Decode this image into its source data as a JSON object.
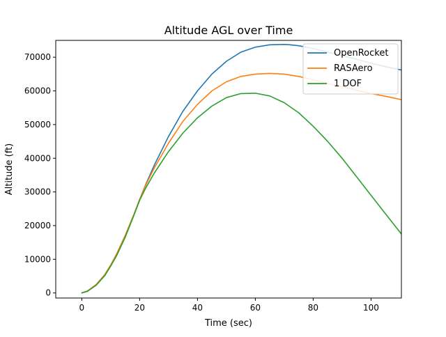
{
  "chart_data": {
    "type": "line",
    "title": "Altitude AGL over Time",
    "xlabel": "Time (sec)",
    "ylabel": "Altitude (ft)",
    "xlim": [
      -9,
      110.5
    ],
    "ylim": [
      -1500,
      75000
    ],
    "xticks": [
      0,
      20,
      40,
      60,
      80,
      100
    ],
    "yticks": [
      0,
      10000,
      20000,
      30000,
      40000,
      50000,
      60000,
      70000
    ],
    "legend_position": "top-right",
    "grid": false,
    "series": [
      {
        "name": "OpenRocket",
        "color": "#1f77b4",
        "x": [
          0,
          2,
          5,
          8,
          10,
          12,
          15,
          18,
          20,
          22,
          25,
          30,
          35,
          40,
          45,
          50,
          55,
          60,
          65,
          70,
          72,
          75,
          80,
          85,
          90,
          95,
          100,
          105,
          110.5
        ],
        "y": [
          0,
          600,
          2500,
          5500,
          8300,
          11500,
          17000,
          23300,
          27800,
          32000,
          37800,
          46500,
          54000,
          60000,
          65000,
          68800,
          71500,
          73000,
          73700,
          73800,
          73700,
          73400,
          72600,
          71500,
          70500,
          69400,
          68200,
          67200,
          66200
        ]
      },
      {
        "name": "RASAero",
        "color": "#ff7f0e",
        "x": [
          0,
          2,
          5,
          8,
          10,
          12,
          15,
          18,
          20,
          22,
          25,
          30,
          35,
          40,
          45,
          50,
          55,
          60,
          65,
          70,
          75,
          80,
          85,
          90,
          95,
          100,
          105,
          110.5
        ],
        "y": [
          0,
          600,
          2500,
          5500,
          8300,
          11500,
          17000,
          23300,
          27800,
          31800,
          37000,
          44500,
          51000,
          56000,
          60000,
          62700,
          64300,
          65000,
          65200,
          65000,
          64300,
          63300,
          62200,
          61200,
          60200,
          59200,
          58400,
          57400
        ]
      },
      {
        "name": "1 DOF",
        "color": "#2ca02c",
        "x": [
          0,
          2,
          5,
          8,
          10,
          12,
          15,
          18,
          20,
          22,
          25,
          30,
          35,
          40,
          45,
          50,
          55,
          60,
          65,
          70,
          75,
          80,
          85,
          90,
          95,
          100,
          105,
          110.5
        ],
        "y": [
          0,
          500,
          2300,
          5200,
          8000,
          11000,
          16500,
          23000,
          27500,
          31000,
          35500,
          42000,
          47500,
          52000,
          55500,
          58000,
          59200,
          59300,
          58500,
          56500,
          53500,
          49500,
          45000,
          40000,
          34500,
          29000,
          23500,
          17500
        ]
      }
    ]
  }
}
